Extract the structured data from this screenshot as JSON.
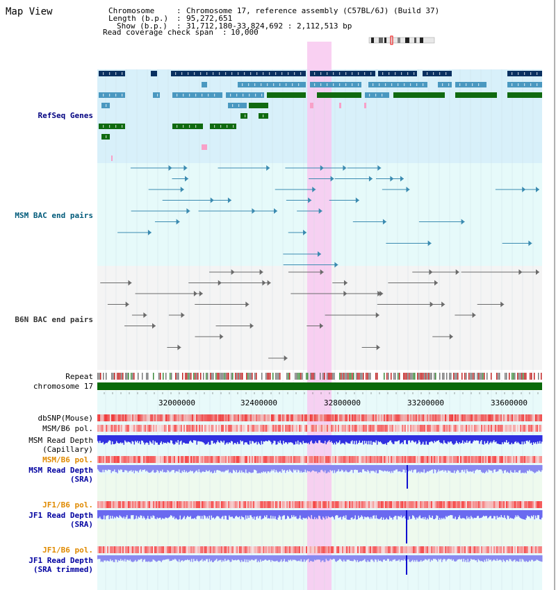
{
  "page": {
    "title": "Map View"
  },
  "info": {
    "chromosome_label": "Chromosome",
    "chromosome_value": "Chromosome 17, reference assembly (C57BL/6J) (Build 37)",
    "length_label": "Length (b.p.)",
    "length_value": "95,272,651",
    "show_label": "Show (b.p.)",
    "show_value": "31,712,180-33,824,692 : 2,112,513 bp",
    "coverage_label": "Read coverage check span",
    "coverage_value": "10,000"
  },
  "tracks": {
    "refseq": "RefSeq Genes",
    "msm_bac": "MSM BAC end pairs",
    "b6n_bac": "B6N BAC end pairs",
    "repeat": "Repeat",
    "chromosome": "chromosome 17",
    "dbsnp": "dbSNP(Mouse)",
    "msm_b6_pol_1": "MSM/B6 pol.",
    "msm_read_depth_cap": "MSM Read Depth\n(Capillary)",
    "msm_b6_pol_2": "MSM/B6 pol.",
    "msm_read_depth_sra": "MSM Read Depth\n(SRA)",
    "jf1_b6_pol_1": "JF1/B6 pol.",
    "jf1_read_depth_sra": "JF1 Read Depth\n(SRA)",
    "jf1_b6_pol_2": "JF1/B6 pol.",
    "jf1_read_depth_trim": "JF1 Read Depth\n(SRA trimmed)"
  },
  "axis": {
    "ticks": [
      "32000000",
      "32400000",
      "32800000",
      "33200000",
      "33600000"
    ]
  },
  "colors": {
    "refseq_label": "#000080",
    "msm_label": "#005a7a",
    "b6n_label": "#333333",
    "orange_label": "#e08a00",
    "blue_label": "#0000a0",
    "highlight": "#f8c8f0",
    "refseq_bg": "#d8f0fa",
    "bac_bg": "#e6fafa",
    "gene_dark": "#0a3060",
    "gene_mid": "#4a98c0",
    "gene_green": "#106a10",
    "chrom_bar": "#0a6a0a"
  }
}
